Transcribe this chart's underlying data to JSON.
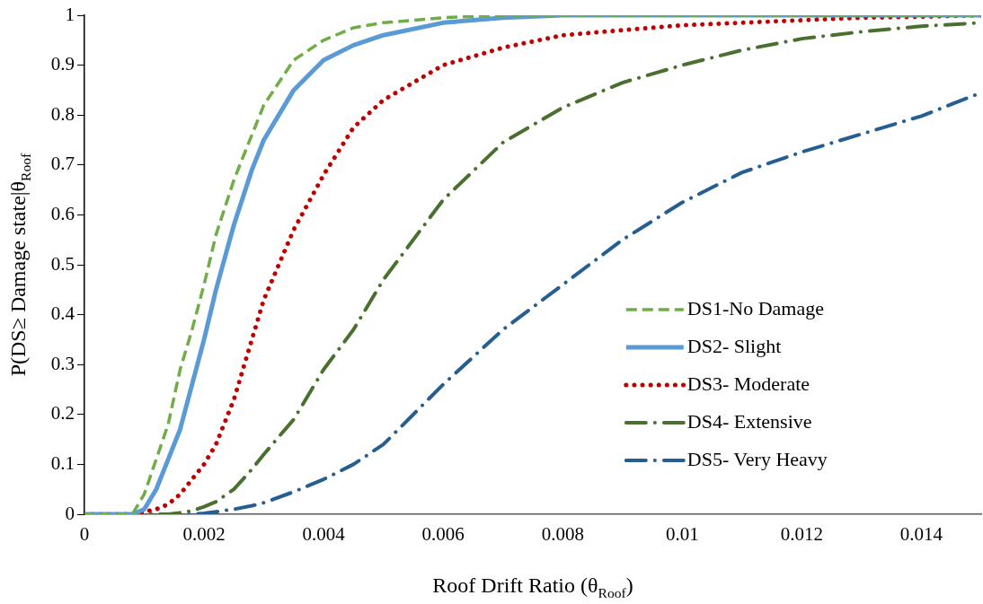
{
  "chart_data": {
    "type": "line",
    "xlabel": "Roof Drift Ratio (θ$_{Roof}$)",
    "ylabel": "P(DS≥ Damage state|θ$_{Roof}$",
    "x": [
      0,
      0.0005,
      0.0008,
      0.001,
      0.0012,
      0.0014,
      0.0016,
      0.0018,
      0.002,
      0.0022,
      0.0025,
      0.0028,
      0.003,
      0.0035,
      0.004,
      0.0045,
      0.005,
      0.006,
      0.007,
      0.008,
      0.009,
      0.01,
      0.011,
      0.012,
      0.013,
      0.014,
      0.015
    ],
    "series": [
      {
        "name": "DS1-No Damage",
        "color": "#70ad47",
        "line_style": "dashed",
        "values": [
          0,
          0,
          0,
          0.04,
          0.11,
          0.18,
          0.29,
          0.37,
          0.46,
          0.56,
          0.67,
          0.76,
          0.82,
          0.91,
          0.95,
          0.975,
          0.985,
          0.995,
          1,
          1,
          1,
          1,
          1,
          1,
          1,
          1,
          1
        ]
      },
      {
        "name": "DS2- Slight",
        "color": "#5b9bd5",
        "line_style": "solid",
        "values": [
          0,
          0,
          0,
          0.01,
          0.05,
          0.11,
          0.17,
          0.26,
          0.35,
          0.45,
          0.58,
          0.69,
          0.75,
          0.85,
          0.91,
          0.94,
          0.96,
          0.985,
          0.995,
          1,
          1,
          1,
          1,
          1,
          1,
          1,
          1
        ]
      },
      {
        "name": "DS3- Moderate",
        "color": "#c00000",
        "line_style": "dotted",
        "values": [
          0,
          0,
          0,
          0.005,
          0.01,
          0.02,
          0.04,
          0.07,
          0.1,
          0.14,
          0.23,
          0.35,
          0.43,
          0.57,
          0.68,
          0.775,
          0.83,
          0.9,
          0.935,
          0.96,
          0.97,
          0.98,
          0.985,
          0.99,
          0.995,
          0.997,
          1
        ]
      },
      {
        "name": "DS4- Extensive",
        "color": "#4a7030",
        "line_style": "dashdot",
        "values": [
          0,
          0,
          0,
          0,
          0,
          0,
          0.003,
          0.007,
          0.015,
          0.025,
          0.05,
          0.09,
          0.12,
          0.19,
          0.29,
          0.37,
          0.47,
          0.63,
          0.745,
          0.815,
          0.865,
          0.9,
          0.93,
          0.953,
          0.967,
          0.978,
          0.985
        ]
      },
      {
        "name": "DS5- Very Heavy",
        "color": "#255e91",
        "line_style": "dashdot",
        "values": [
          0,
          0,
          0,
          0,
          0,
          0,
          0,
          0,
          0.002,
          0.005,
          0.01,
          0.017,
          0.023,
          0.045,
          0.07,
          0.1,
          0.14,
          0.26,
          0.37,
          0.46,
          0.55,
          0.625,
          0.685,
          0.726,
          0.762,
          0.798,
          0.845
        ]
      }
    ],
    "xlim": [
      0,
      0.015
    ],
    "xticks": [
      0,
      0.002,
      0.004,
      0.006,
      0.008,
      0.01,
      0.012,
      0.014
    ],
    "ylim": [
      0,
      1
    ],
    "yticks": [
      0,
      0.1,
      0.2,
      0.3,
      0.4,
      0.5,
      0.6,
      0.7,
      0.8,
      0.9,
      1
    ],
    "grid": false,
    "legend": "right",
    "marker": "none"
  }
}
